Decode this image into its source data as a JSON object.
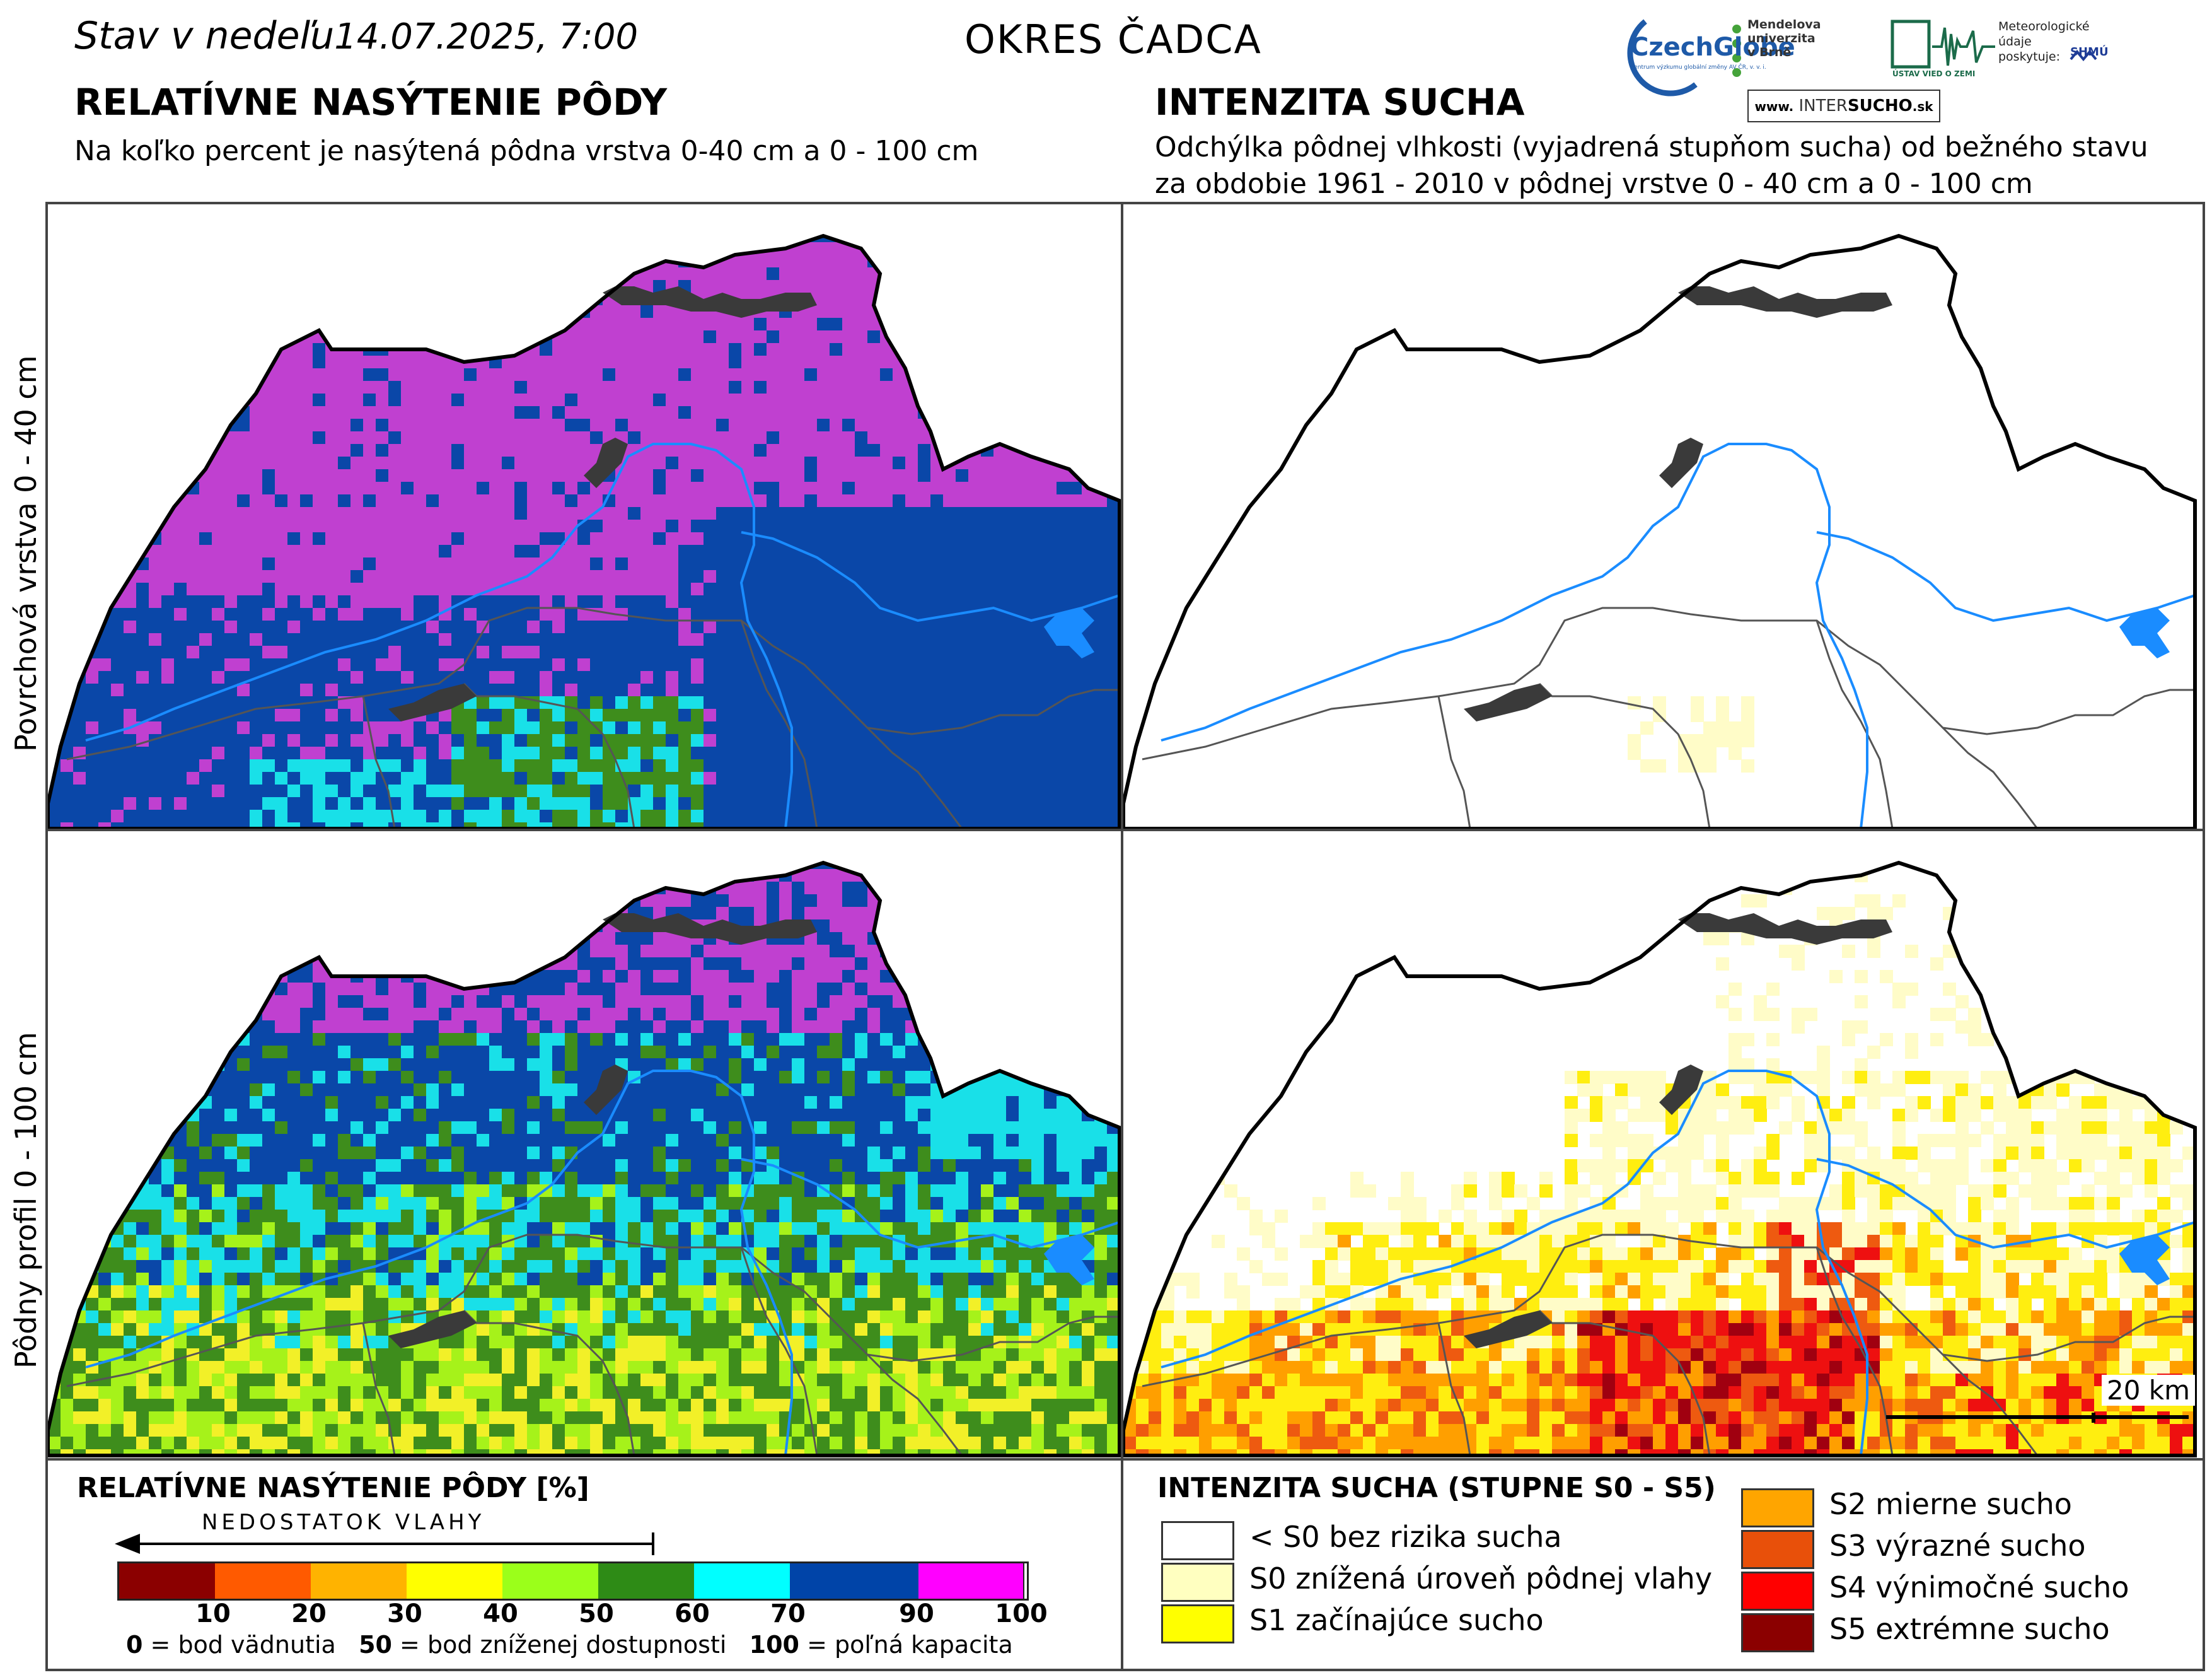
{
  "header": {
    "date_prefix": "Stav v nedeľu",
    "date_value": "14.07.2025, 7:00",
    "district": "OKRES ČADCA"
  },
  "left_section": {
    "title": "RELATÍVNE NASÝTENIE PÔDY",
    "subtitle": "Na koľko percent je nasýtená pôdna vrstva 0-40 cm a 0 - 100 cm"
  },
  "right_section": {
    "title": "INTENZITA SUCHA",
    "subtitle_line1": "Odchýlka pôdnej vlhkosti (vyjadrená stupňom sucha) od bežného stavu",
    "subtitle_line2": "za obdobie 1961 - 2010 v pôdnej vrstve 0 - 40 cm a 0 - 100 cm"
  },
  "logos": {
    "czechglobe": "CzechGlobe",
    "czechglobe_sub": "Centrum výzkumu globální změny AV ČR, v. v. i.",
    "mendel_line1": "Mendelova",
    "mendel_line2": "univerzita",
    "mendel_line3": "v Brně",
    "ustav": "ÚSTAV VIED O ZEMI",
    "meteo_line1": "Meteorologické",
    "meteo_line2": "údaje",
    "meteo_line3": "poskytuje:",
    "shmu": "SHMÚ",
    "intersucho_prefix": "www.",
    "intersucho_name_a": "INTER",
    "intersucho_name_b": "SUCHO",
    "intersucho_suffix": ".sk"
  },
  "row_labels": {
    "top": "Povrchová vrstva 0 - 40 cm",
    "bottom": "Pôdny profil 0 - 100 cm"
  },
  "scale_bar": "20 km",
  "saturation_legend": {
    "title": "RELATÍVNE NASÝTENIE PÔDY [%]",
    "arrow_label": "NEDOSTATOK VLAHY",
    "classes": [
      {
        "color": "#8b0000",
        "tick": "10"
      },
      {
        "color": "#ff5a00",
        "tick": "20"
      },
      {
        "color": "#ffb300",
        "tick": "30"
      },
      {
        "color": "#ffff00",
        "tick": "40"
      },
      {
        "color": "#9bff1a",
        "tick": "50"
      },
      {
        "color": "#2e8b16",
        "tick": "60"
      },
      {
        "color": "#00ffff",
        "tick": "70"
      },
      {
        "color": "#0044a8",
        "tick": "90"
      },
      {
        "color": "#ff00ff",
        "tick": "100"
      }
    ],
    "note_a_num": "0",
    "note_a_txt": " = bod vädnutia",
    "note_b_num": "50",
    "note_b_txt": " = bod zníženej dostupnosti",
    "note_c_num": "100",
    "note_c_txt": " = poľná kapacita"
  },
  "drought_legend": {
    "title": "INTENZITA SUCHA (STUPNE S0 - S5)",
    "items": [
      {
        "color": "#ffffff",
        "label": "< S0 bez rizika sucha"
      },
      {
        "color": "#ffffc0",
        "label": "S0 znížená úroveň pôdnej vlahy"
      },
      {
        "color": "#ffff00",
        "label": "S1 začínajúce sucho"
      },
      {
        "color": "#ffa500",
        "label": "S2 mierne sucho"
      },
      {
        "color": "#e8500a",
        "label": "S3 výrazné sucho"
      },
      {
        "color": "#ff0000",
        "label": "S4 výnimočné sucho"
      },
      {
        "color": "#8b0000",
        "label": "S5 extrémne sucho"
      }
    ]
  },
  "map_colors": {
    "saturation_top_north": "#c040d0",
    "saturation_top_east": "#0a47a8",
    "saturation_top_south_cyan": "#19e0e8",
    "saturation_top_south_green": "#3e8d1c",
    "saturation_bottom_north": "#0a47a8",
    "saturation_bottom_mid_cyan": "#19e0e8",
    "saturation_bottom_south_green": "#3e8d1c",
    "saturation_bottom_south_lime": "#a6f21a",
    "saturation_bottom_south_yellow": "#f2f028",
    "drought_s0": "#fffcc8",
    "drought_s1": "#ffee10",
    "drought_s2": "#ff9f00",
    "drought_s3": "#ee5a10",
    "drought_s4": "#ee1010",
    "drought_s5": "#a00010",
    "river": "#1a8cff",
    "reservoir": "#3a3a3a",
    "border": "#000000"
  }
}
